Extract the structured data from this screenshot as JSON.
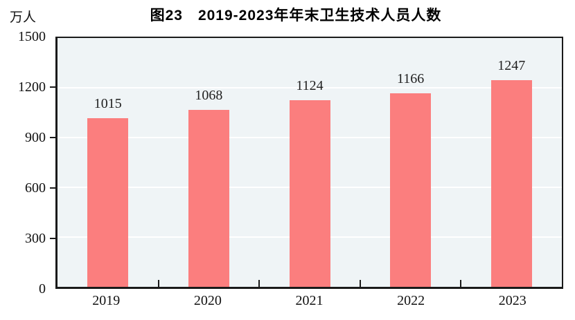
{
  "figure": {
    "title": "图23　2019-2023年年末卫生技术人员人数",
    "unit_label": "万人"
  },
  "chart_data": {
    "type": "bar",
    "title": "图23　2019-2023年年末卫生技术人员人数",
    "categories": [
      "2019",
      "2020",
      "2021",
      "2022",
      "2023"
    ],
    "values": [
      1015,
      1068,
      1124,
      1166,
      1247
    ],
    "data_labels": [
      1015,
      1068,
      1124,
      1166,
      1247
    ],
    "xlabel": "",
    "ylabel": "万人",
    "ylim": [
      0,
      1500
    ],
    "y_ticks": [
      0,
      300,
      600,
      900,
      1200,
      1500
    ],
    "grid": true,
    "legend_position": "none",
    "colors": {
      "bar": "#FB7E7E",
      "plot_background": "#EFF4F6",
      "gridline": "#FFFFFF",
      "axis": "#1A1A1A",
      "text": "#111111"
    }
  }
}
